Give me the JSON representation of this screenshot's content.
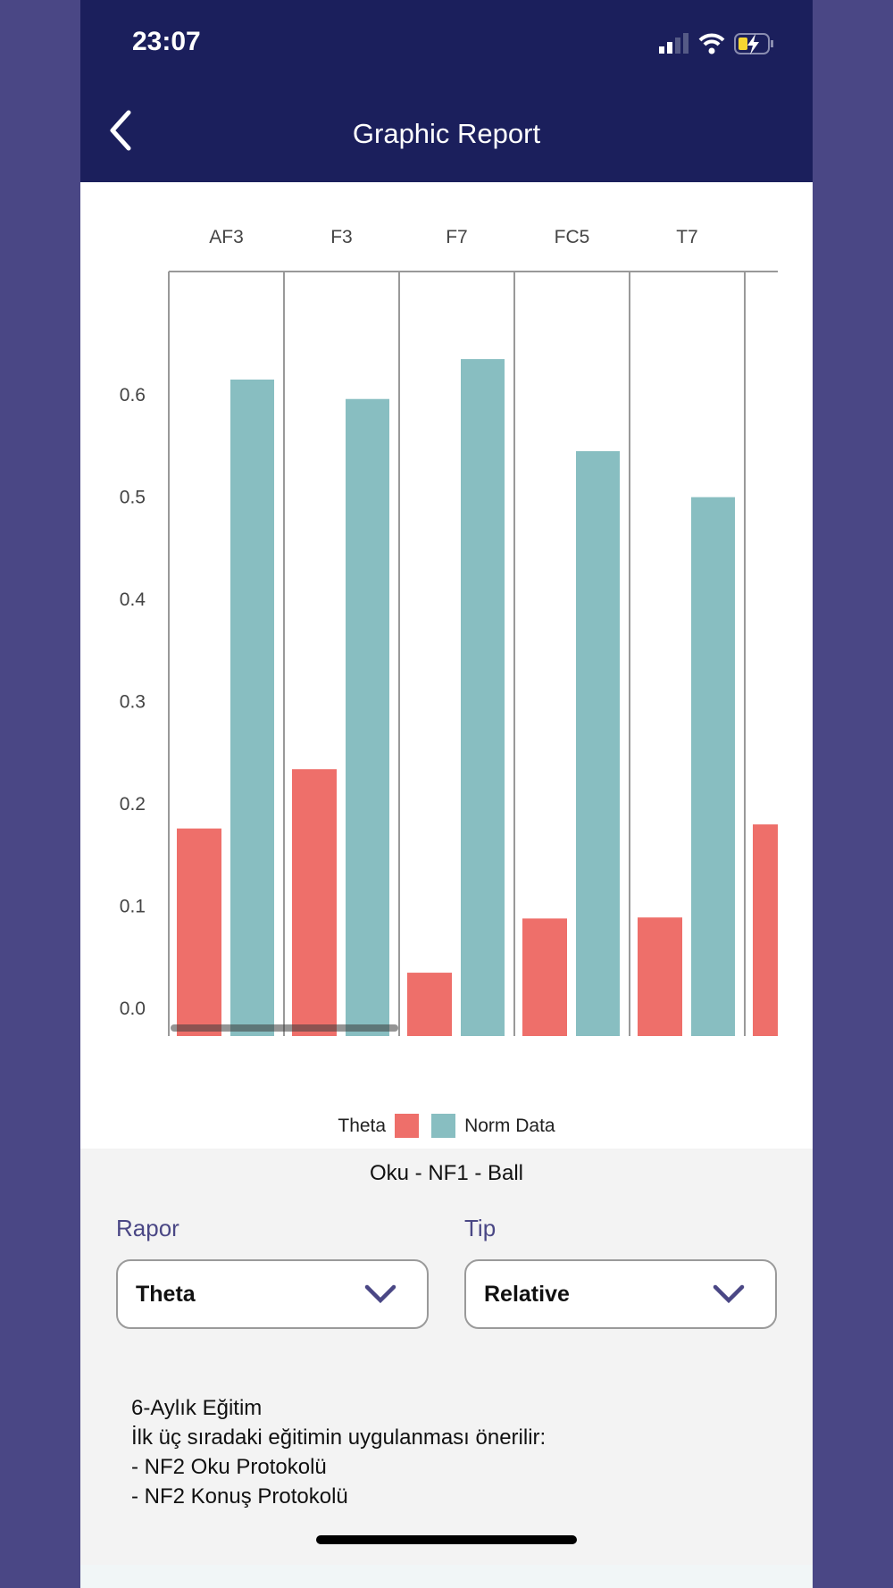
{
  "status": {
    "time": "23:07"
  },
  "header": {
    "title": "Graphic Report",
    "back_icon": "chevron-left-icon"
  },
  "chart_data": {
    "type": "bar",
    "categories": [
      "AF3",
      "F3",
      "F7",
      "FC5",
      "T7",
      ""
    ],
    "series": [
      {
        "name": "Theta",
        "color": "#ee6f6a",
        "values": [
          0.175,
          0.233,
          0.034,
          0.087,
          0.088,
          0.179
        ]
      },
      {
        "name": "Norm Data",
        "color": "#88bec1",
        "values": [
          0.614,
          0.595,
          0.634,
          0.544,
          0.499,
          null
        ]
      }
    ],
    "yticks": [
      "0.0",
      "0.1",
      "0.2",
      "0.3",
      "0.4",
      "0.5",
      "0.6"
    ],
    "ylim": [
      0,
      0.65
    ],
    "legend": "bottom"
  },
  "subtitle": "Oku - NF1 - Ball",
  "form": {
    "rapor_label": "Rapor",
    "rapor_value": "Theta",
    "tip_label": "Tip",
    "tip_value": "Relative"
  },
  "note": {
    "lines": [
      "6-Aylık Eğitim",
      "İlk üç sıradaki eğitimin uygulanması önerilir:",
      "- NF2 Oku Protokolü",
      "- NF2 Konuş Protokolü"
    ]
  }
}
